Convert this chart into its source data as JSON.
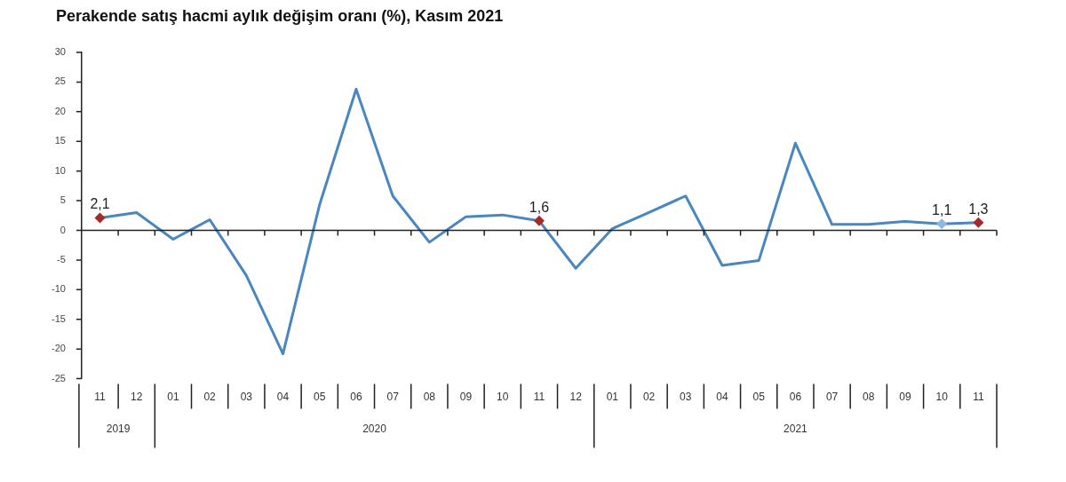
{
  "chart_data": {
    "type": "line",
    "title": "Perakende satış hacmi aylık değişim oranı (%), Kasım 2021",
    "categories": [
      "11",
      "12",
      "01",
      "02",
      "03",
      "04",
      "05",
      "06",
      "07",
      "08",
      "09",
      "10",
      "11",
      "12",
      "01",
      "02",
      "03",
      "04",
      "05",
      "06",
      "07",
      "08",
      "09",
      "10",
      "11"
    ],
    "series": [
      {
        "color": "#4a86c0",
        "values": [
          2.1,
          3.0,
          -1.5,
          1.8,
          -7.6,
          -20.8,
          4.3,
          23.8,
          5.8,
          -2.0,
          2.3,
          2.6,
          1.6,
          -6.4,
          0.3,
          3.0,
          5.8,
          -5.9,
          -5.1,
          14.7,
          1.0,
          1.0,
          1.5,
          1.1,
          1.3
        ],
        "value_labels": [
          "2,1",
          null,
          null,
          null,
          null,
          null,
          null,
          null,
          null,
          null,
          null,
          null,
          "1,6",
          null,
          null,
          null,
          null,
          null,
          null,
          null,
          null,
          null,
          null,
          "1,1",
          "1,3"
        ],
        "colors": [
          "#a52a2a",
          null,
          null,
          null,
          null,
          null,
          null,
          null,
          null,
          null,
          null,
          null,
          "#a52a2a",
          null,
          null,
          null,
          null,
          null,
          null,
          null,
          null,
          null,
          null,
          "#8fb8e0",
          "#a52a2a"
        ]
      }
    ],
    "annotations": [
      "2019",
      "2020",
      "2021"
    ],
    "ylim": [
      -25,
      30
    ],
    "yticks": [
      -25,
      -20,
      -15,
      -10,
      -5,
      0,
      5,
      10,
      15,
      20,
      25,
      30
    ],
    "legend": false
  }
}
